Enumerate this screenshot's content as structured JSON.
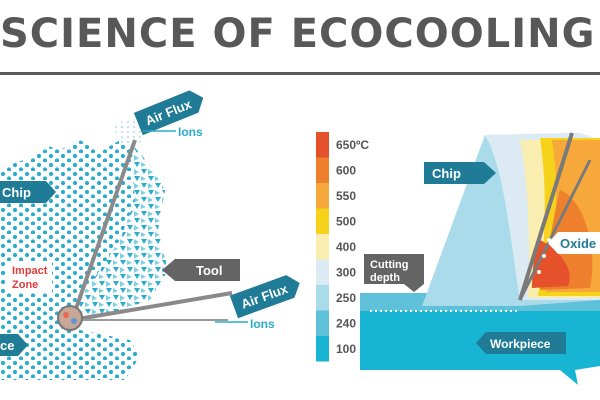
{
  "title": "SCIENCE OF ECOCOOLING",
  "left_diagram": {
    "air_flux_top": "Air Flux",
    "ions_top": "Ions",
    "chip": "Chip",
    "impact_zone_line1": "Impact",
    "impact_zone_line2": "Zone",
    "tool": "Tool",
    "air_flux_bottom": "Air Flux",
    "ions_bottom": "Ions",
    "workpiece_fragment": "ce"
  },
  "legend": {
    "labels": [
      "650ºC",
      "600",
      "550",
      "500",
      "400",
      "300",
      "250",
      "240",
      "100"
    ],
    "colors": [
      "#e4512a",
      "#ee7f2c",
      "#f6a83a",
      "#f7d21a",
      "#f9eeb0",
      "#dcebf3",
      "#a9dbea",
      "#5fc0d9",
      "#18b4d4"
    ]
  },
  "right_diagram": {
    "chip": "Chip",
    "cutting_depth_line1": "Cutting",
    "cutting_depth_line2": "depth",
    "oxide_layer": "Oxide L",
    "workpiece": "Workpiece"
  }
}
